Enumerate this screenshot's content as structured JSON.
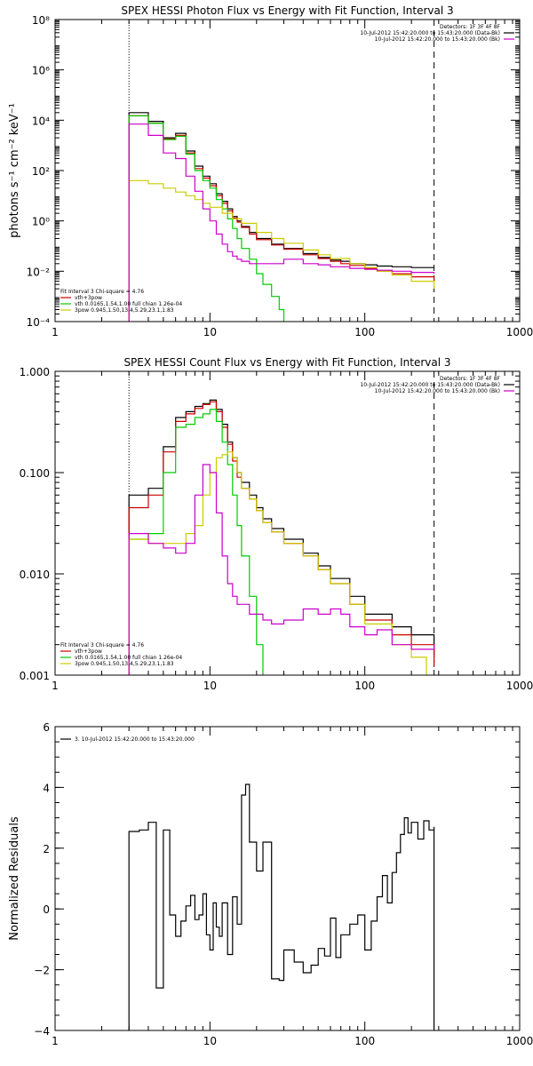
{
  "chart_data": [
    {
      "type": "line",
      "title": "SPEX HESSI Photon Flux vs Energy with Fit Function, Interval 3",
      "ylabel": "photons s⁻¹ cm⁻² keV⁻¹",
      "xlabel": "",
      "xscale": "log",
      "yscale": "log",
      "xlim": [
        1,
        1000
      ],
      "ylim": [
        0.0001,
        100000000
      ],
      "xtick_values": [
        1,
        10,
        100,
        1000
      ],
      "xtick_labels": [
        "1",
        "10",
        "100",
        "1000"
      ],
      "ytick_values": [
        0.0001,
        0.01,
        1,
        100,
        10000,
        1000000,
        100000000
      ],
      "ytick_labels": [
        "10⁻⁴",
        "10⁻²",
        "10⁰",
        "10²",
        "10⁴",
        "10⁶",
        "10⁸"
      ],
      "grid": false,
      "legend_top_right": [
        "Detectors: 1F 3F 4F 8F",
        "10-Jul-2012 15:42:20.000 to 15:43:20.000 (Data-Bk)",
        "10-Jul-2012 15:42:20.000 to 15:43:20.000 (Bk)"
      ],
      "legend_bottom_left": [
        "Fit Interval 3   Chi-square = 4.76",
        "vth+3pow",
        "vth 0.0165,1.54,1.00  full chian 1.26e-04",
        "3pow 0.945,1.50,13.4,5.29,23.1,1.83"
      ],
      "vlines": [
        {
          "x": 3.0,
          "style": "dotted"
        },
        {
          "x": 280,
          "style": "dashed"
        }
      ],
      "series": [
        {
          "name": "Data-Bk",
          "color": "#000000",
          "x": [
            3.0,
            4.0,
            5.0,
            6.0,
            7.0,
            8.0,
            9.0,
            10.0,
            11.0,
            12.0,
            13.0,
            14.0,
            15.0,
            16.0,
            18.0,
            20.0,
            25.0,
            30.0,
            40.0,
            50.0,
            60.0,
            70.0,
            80.0,
            100.0,
            120.0,
            150.0,
            200.0,
            280.0
          ],
          "y": [
            20000,
            9000,
            2000,
            3000,
            600,
            150,
            60,
            30,
            12,
            6,
            3,
            1.5,
            1.0,
            0.6,
            0.35,
            0.2,
            0.12,
            0.08,
            0.05,
            0.035,
            0.028,
            0.025,
            0.02,
            0.018,
            0.016,
            0.015,
            0.014,
            0.014
          ]
        },
        {
          "name": "vth+3pow",
          "color": "#cc0000",
          "x": [
            3.0,
            4.0,
            5.0,
            6.0,
            7.0,
            8.0,
            9.0,
            10.0,
            11.0,
            12.0,
            13.0,
            14.0,
            15.0,
            16.0,
            18.0,
            20.0,
            25.0,
            30.0,
            40.0,
            50.0,
            60.0,
            70.0,
            80.0,
            100.0,
            120.0,
            150.0,
            200.0,
            280.0
          ],
          "y": [
            15000,
            7500,
            1800,
            2500,
            500,
            120,
            50,
            25,
            10,
            5,
            2.5,
            1.3,
            0.9,
            0.55,
            0.3,
            0.18,
            0.11,
            0.075,
            0.045,
            0.032,
            0.025,
            0.02,
            0.017,
            0.013,
            0.01,
            0.008,
            0.006,
            0.004
          ]
        },
        {
          "name": "vth",
          "color": "#00cc00",
          "x": [
            3.0,
            4.0,
            5.0,
            6.0,
            7.0,
            8.0,
            9.0,
            10.0,
            11.0,
            12.0,
            13.0,
            14.0,
            15.0,
            16.0,
            18.0,
            20.0,
            22.0,
            25.0,
            28.0,
            30.0
          ],
          "y": [
            15000,
            7500,
            1700,
            2300,
            450,
            100,
            40,
            20,
            7,
            3,
            1.2,
            0.5,
            0.2,
            0.08,
            0.03,
            0.008,
            0.003,
            0.001,
            0.0003,
            0.0001
          ]
        },
        {
          "name": "3pow",
          "color": "#cccc00",
          "x": [
            3.0,
            4.0,
            5.0,
            6.0,
            7.0,
            8.0,
            9.0,
            10.0,
            12.0,
            14.0,
            16.0,
            20.0,
            25.0,
            30.0,
            40.0,
            50.0,
            60.0,
            80.0,
            100.0,
            120.0,
            150.0,
            200.0,
            280.0
          ],
          "y": [
            40,
            30,
            20,
            14,
            10,
            7,
            5,
            3.5,
            2.0,
            1.2,
            0.8,
            0.35,
            0.2,
            0.13,
            0.07,
            0.045,
            0.032,
            0.02,
            0.014,
            0.01,
            0.007,
            0.004,
            0.002
          ]
        },
        {
          "name": "Bk",
          "color": "#cc00cc",
          "x": [
            3.0,
            4.0,
            5.0,
            6.0,
            7.0,
            8.0,
            9.0,
            10.0,
            11.0,
            12.0,
            13.0,
            14.0,
            15.0,
            16.0,
            18.0,
            20.0,
            25.0,
            30.0,
            40.0,
            50.0,
            60.0,
            70.0,
            80.0,
            100.0,
            120.0,
            150.0,
            200.0,
            280.0
          ],
          "y": [
            7000,
            2500,
            500,
            300,
            60,
            15,
            3,
            1.0,
            0.3,
            0.12,
            0.06,
            0.04,
            0.03,
            0.025,
            0.02,
            0.02,
            0.02,
            0.03,
            0.02,
            0.018,
            0.015,
            0.015,
            0.013,
            0.012,
            0.011,
            0.01,
            0.009,
            0.008
          ]
        }
      ]
    },
    {
      "type": "line",
      "title": "SPEX HESSI Count Flux vs Energy with Fit Function, Interval 3",
      "ylabel": "",
      "xlabel": "",
      "xscale": "log",
      "yscale": "log",
      "xlim": [
        1,
        1000
      ],
      "ylim": [
        0.001,
        1.0
      ],
      "xtick_values": [
        1,
        10,
        100,
        1000
      ],
      "xtick_labels": [
        "1",
        "10",
        "100",
        "1000"
      ],
      "ytick_values": [
        0.001,
        0.01,
        0.1,
        1.0
      ],
      "ytick_labels": [
        "0.001",
        "0.010",
        "0.100",
        "1.000"
      ],
      "grid": false,
      "legend_top_right": [
        "Detectors: 1F 3F 4F 8F",
        "10-Jul-2012 15:42:20.000 to 15:43:20.000 (Data-Bk)",
        "10-Jul-2012 15:42:20.000 to 15:43:20.000 (Bk)"
      ],
      "legend_bottom_left": [
        "Fit Interval 3   Chi-square = 4.76",
        "vth+3pow",
        "vth 0.0165,1.54,1.00  full chian 1.26e-04",
        "3pow 0.945,1.50,13.4,5.29,23.1,1.83"
      ],
      "vlines": [
        {
          "x": 3.0,
          "style": "dotted"
        },
        {
          "x": 280,
          "style": "dashed"
        }
      ],
      "series": [
        {
          "name": "Data-Bk",
          "color": "#000000",
          "x": [
            3.0,
            4.0,
            5.0,
            6.0,
            7.0,
            8.0,
            9.0,
            10.0,
            11.0,
            12.0,
            13.0,
            14.0,
            15.0,
            16.0,
            18.0,
            20.0,
            22.0,
            25.0,
            30.0,
            40.0,
            50.0,
            60.0,
            80.0,
            100.0,
            150.0,
            200.0,
            280.0
          ],
          "y": [
            0.06,
            0.07,
            0.18,
            0.35,
            0.4,
            0.45,
            0.48,
            0.52,
            0.42,
            0.3,
            0.2,
            0.14,
            0.1,
            0.08,
            0.06,
            0.045,
            0.035,
            0.028,
            0.022,
            0.016,
            0.012,
            0.009,
            0.006,
            0.004,
            0.003,
            0.0025,
            0.0015
          ]
        },
        {
          "name": "vth+3pow",
          "color": "#cc0000",
          "x": [
            3.0,
            4.0,
            5.0,
            6.0,
            7.0,
            8.0,
            9.0,
            10.0,
            11.0,
            12.0,
            13.0,
            14.0,
            15.0,
            16.0,
            18.0,
            20.0,
            22.0,
            25.0,
            30.0,
            40.0,
            50.0,
            60.0,
            80.0,
            100.0,
            150.0,
            200.0,
            280.0
          ],
          "y": [
            0.045,
            0.06,
            0.16,
            0.32,
            0.38,
            0.43,
            0.47,
            0.5,
            0.4,
            0.28,
            0.19,
            0.13,
            0.09,
            0.07,
            0.055,
            0.042,
            0.032,
            0.026,
            0.02,
            0.015,
            0.011,
            0.008,
            0.005,
            0.0035,
            0.0025,
            0.002,
            0.0012
          ]
        },
        {
          "name": "vth",
          "color": "#00cc00",
          "x": [
            3.0,
            4.0,
            5.0,
            6.0,
            7.0,
            8.0,
            9.0,
            10.0,
            11.0,
            12.0,
            13.0,
            14.0,
            15.0,
            16.0,
            18.0,
            20.0,
            22.0
          ],
          "y": [
            0.022,
            0.025,
            0.1,
            0.28,
            0.3,
            0.35,
            0.38,
            0.42,
            0.32,
            0.2,
            0.12,
            0.06,
            0.03,
            0.015,
            0.006,
            0.002,
            0.0008
          ]
        },
        {
          "name": "3pow",
          "color": "#cccc00",
          "x": [
            3.0,
            4.0,
            5.0,
            6.0,
            7.0,
            8.0,
            9.0,
            10.0,
            11.0,
            12.0,
            13.0,
            14.0,
            15.0,
            16.0,
            18.0,
            20.0,
            22.0,
            25.0,
            30.0,
            40.0,
            50.0,
            60.0,
            80.0,
            100.0,
            150.0,
            200.0,
            250.0
          ],
          "y": [
            0.022,
            0.02,
            0.02,
            0.02,
            0.025,
            0.03,
            0.06,
            0.1,
            0.14,
            0.15,
            0.16,
            0.14,
            0.1,
            0.07,
            0.055,
            0.042,
            0.032,
            0.026,
            0.02,
            0.015,
            0.011,
            0.008,
            0.005,
            0.0032,
            0.002,
            0.0015,
            0.001
          ]
        },
        {
          "name": "Bk",
          "color": "#cc00cc",
          "x": [
            3.0,
            4.0,
            5.0,
            6.0,
            7.0,
            8.0,
            9.0,
            10.0,
            11.0,
            12.0,
            13.0,
            14.0,
            15.0,
            16.0,
            18.0,
            20.0,
            22.0,
            25.0,
            30.0,
            40.0,
            50.0,
            60.0,
            70.0,
            80.0,
            100.0,
            120.0,
            150.0,
            200.0,
            280.0
          ],
          "y": [
            0.025,
            0.02,
            0.018,
            0.016,
            0.02,
            0.06,
            0.12,
            0.1,
            0.04,
            0.015,
            0.008,
            0.006,
            0.005,
            0.005,
            0.004,
            0.004,
            0.0035,
            0.0032,
            0.0035,
            0.0045,
            0.004,
            0.0045,
            0.004,
            0.003,
            0.0025,
            0.0028,
            0.002,
            0.0018,
            0.002
          ]
        }
      ]
    },
    {
      "type": "line",
      "title": "",
      "ylabel": "Normalized Residuals",
      "xlabel": "",
      "xscale": "log",
      "yscale": "linear",
      "xlim": [
        1,
        1000
      ],
      "ylim": [
        -4,
        6
      ],
      "xtick_values": [
        1,
        10,
        100,
        1000
      ],
      "xtick_labels": [
        "1",
        "10",
        "100",
        "1000"
      ],
      "ytick_values": [
        -4,
        -2,
        0,
        2,
        4,
        6
      ],
      "ytick_labels": [
        "−4",
        "−2",
        "0",
        "2",
        "4",
        "6"
      ],
      "grid": false,
      "legend_top_left": [
        "3. 10-Jul-2012 15:42:20.000 to 15:43:20.000"
      ],
      "series": [
        {
          "name": "3. 10-Jul-2012 15:42:20.000 to 15:43:20.000",
          "color": "#000000",
          "x": [
            3.0,
            3.5,
            4.0,
            4.5,
            5.0,
            5.5,
            6.0,
            6.5,
            7.0,
            7.5,
            8.0,
            8.5,
            9.0,
            9.5,
            10.0,
            10.5,
            11.0,
            11.5,
            12.0,
            13.0,
            14.0,
            15.0,
            16.0,
            17.0,
            18.0,
            20.0,
            22.0,
            25.0,
            28.0,
            30.0,
            35.0,
            40.0,
            45.0,
            50.0,
            55.0,
            60.0,
            65.0,
            70.0,
            80.0,
            90.0,
            100.0,
            110.0,
            120.0,
            130.0,
            140.0,
            150.0,
            160.0,
            170.0,
            180.0,
            190.0,
            200.0,
            220.0,
            240.0,
            260.0,
            280.0
          ],
          "y": [
            2.55,
            2.6,
            2.85,
            -2.6,
            2.6,
            -0.2,
            -0.9,
            -0.4,
            0.1,
            0.45,
            -0.35,
            -0.2,
            0.5,
            -0.85,
            -1.35,
            0.2,
            -0.6,
            -0.9,
            0.2,
            -1.5,
            0.4,
            -0.5,
            3.75,
            4.1,
            2.2,
            1.25,
            2.2,
            -2.3,
            -2.35,
            -1.35,
            -1.75,
            -2.1,
            -1.85,
            -1.3,
            -1.55,
            -0.3,
            -1.6,
            -0.85,
            -0.5,
            -0.2,
            -1.35,
            -0.4,
            0.4,
            1.1,
            0.2,
            1.2,
            1.85,
            2.45,
            3.0,
            2.5,
            2.85,
            2.3,
            2.9,
            2.6,
            2.7
          ]
        }
      ]
    }
  ]
}
